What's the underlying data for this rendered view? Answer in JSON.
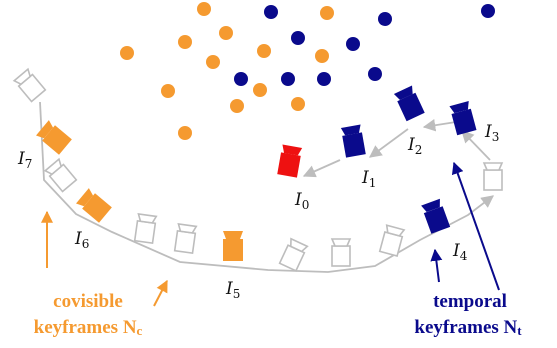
{
  "colors": {
    "map_point_orange": "#F59A30",
    "map_point_blue": "#0A0A8C",
    "covisible": "#F59A30",
    "temporal": "#0A0A8C",
    "current": "#EE1111",
    "inactive": "#C8C8C8",
    "trajectory": "#BDBDBD"
  },
  "keyframes": [
    {
      "id": "I0",
      "letter": "I",
      "sub": "0",
      "kind": "current"
    },
    {
      "id": "I1",
      "letter": "I",
      "sub": "1",
      "kind": "temporal"
    },
    {
      "id": "I2",
      "letter": "I",
      "sub": "2",
      "kind": "temporal"
    },
    {
      "id": "I3",
      "letter": "I",
      "sub": "3",
      "kind": "temporal"
    },
    {
      "id": "I4",
      "letter": "I",
      "sub": "4",
      "kind": "temporal"
    },
    {
      "id": "I5",
      "letter": "I",
      "sub": "5",
      "kind": "covisible"
    },
    {
      "id": "I6",
      "letter": "I",
      "sub": "6",
      "kind": "covisible"
    },
    {
      "id": "I7",
      "letter": "I",
      "sub": "7",
      "kind": "covisible"
    }
  ],
  "legend": {
    "covisible": {
      "line1": "covisible",
      "line2": "keyframes N",
      "sub": "c"
    },
    "temporal": {
      "line1": "temporal",
      "line2": "keyframes N",
      "sub": "t"
    }
  }
}
